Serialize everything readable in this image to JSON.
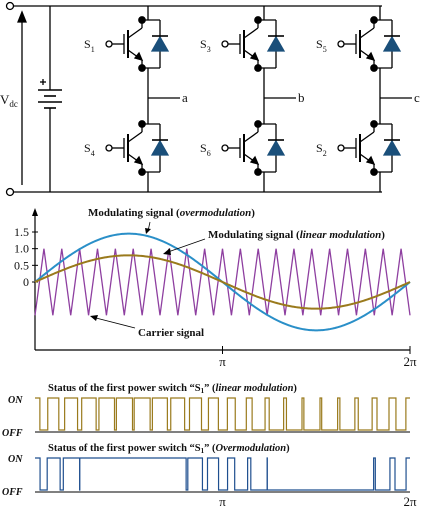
{
  "circuit": {
    "dc_label": "V",
    "dc_label_sub": "dc",
    "switches": [
      {
        "base": "S",
        "sub": "1"
      },
      {
        "base": "S",
        "sub": "3"
      },
      {
        "base": "S",
        "sub": "5"
      },
      {
        "base": "S",
        "sub": "4"
      },
      {
        "base": "S",
        "sub": "6"
      },
      {
        "base": "S",
        "sub": "2"
      }
    ],
    "phase_labels": [
      "a",
      "b",
      "c"
    ]
  },
  "chart_data": [
    {
      "type": "line",
      "title": "",
      "xlabel": "",
      "ylabel": "",
      "x_ticks": [
        {
          "value": 3.14159,
          "label": "π"
        },
        {
          "value": 6.28318,
          "label": "2π"
        }
      ],
      "y_ticks": [
        {
          "value": 1.5,
          "label": "1.5"
        },
        {
          "value": 1.0,
          "label": "1.0"
        },
        {
          "value": 0.5,
          "label": "0.5"
        },
        {
          "value": 0,
          "label": "0"
        }
      ],
      "xlim": [
        0,
        6.28318
      ],
      "ylim": [
        -1.0,
        1.65
      ],
      "carrier": {
        "amplitude": 1.0,
        "cycles": 21,
        "color": "#8e3fa0"
      },
      "series": [
        {
          "amplitude": 1.45,
          "color": "#2a8fc8"
        },
        {
          "amplitude": 0.8,
          "color": "#9a7a1c"
        }
      ],
      "annotations": {
        "overmodulation": {
          "text_before": "Modulating signal (",
          "text_em": "overmodulation",
          "text_after": ")"
        },
        "linear": {
          "text_before": "Modulating signal (",
          "text_em": "linear modulation",
          "text_after": ")"
        },
        "carrier": "Carrier signal"
      }
    },
    {
      "type": "line",
      "title": {
        "before": "Status of the first power switch “S",
        "sub": "1",
        "mid": "” (",
        "em": "linear modulation",
        "after": ")"
      },
      "y_ticks": [
        {
          "value": 1,
          "label": "ON"
        },
        {
          "value": 0,
          "label": "OFF"
        }
      ],
      "color": "#9a7a1c",
      "modulation_index": 0.8
    },
    {
      "type": "line",
      "title": {
        "before": "Status of the first power switch “S",
        "sub": "1",
        "mid": "” (",
        "em": "Overmodulation",
        "after": ")"
      },
      "y_ticks": [
        {
          "value": 1,
          "label": "ON"
        },
        {
          "value": 0,
          "label": "OFF"
        }
      ],
      "x_ticks": [
        {
          "value": 3.14159,
          "label": "π"
        },
        {
          "value": 6.28318,
          "label": "2π"
        }
      ],
      "color": "#1f4f8f",
      "modulation_index": 1.45
    }
  ]
}
